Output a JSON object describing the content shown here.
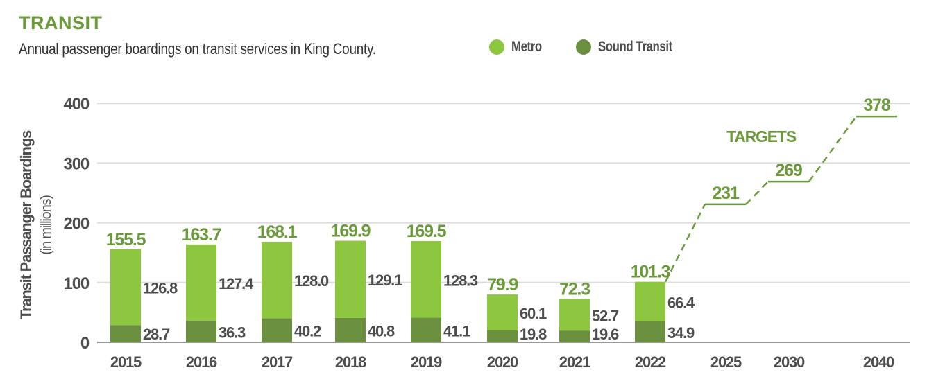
{
  "header": {
    "title": "TRANSIT",
    "subtitle": "Annual passenger boardings on transit services in King County."
  },
  "colors": {
    "metro": "#8dc63f",
    "sound_transit": "#6a8f3e",
    "accent": "#6a9a3a",
    "text": "#4d4d4f",
    "grid": "#dcdcdc"
  },
  "chart_data": {
    "type": "bar",
    "stacked": true,
    "ylabel": "Transit Passanger Boardings",
    "ylabel_sub": "(in millions)",
    "ylim": [
      0,
      400
    ],
    "yticks": [
      "0",
      "100",
      "200",
      "300",
      "400"
    ],
    "grid": true,
    "legend_placement": "top",
    "categories": [
      "2015",
      "2016",
      "2017",
      "2018",
      "2019",
      "2020",
      "2021",
      "2022"
    ],
    "totals": [
      "155.5",
      "163.7",
      "168.1",
      "169.9",
      "169.5",
      "79.9",
      "72.3",
      "101.3"
    ],
    "series": [
      {
        "name": "Sound Transit",
        "values": [
          28.7,
          36.3,
          40.2,
          40.8,
          41.1,
          19.8,
          19.6,
          34.9
        ],
        "labels": [
          "28.7",
          "36.3",
          "40.2",
          "40.8",
          "41.1",
          "19.8",
          "19.6",
          "34.9"
        ]
      },
      {
        "name": "Metro",
        "values": [
          126.8,
          127.4,
          128.0,
          129.1,
          128.3,
          60.1,
          52.7,
          66.4
        ],
        "labels": [
          "126.8",
          "127.4",
          "128.0",
          "129.1",
          "128.3",
          "60.1",
          "52.7",
          "66.4"
        ]
      }
    ],
    "targets": {
      "label": "TARGETS",
      "categories": [
        "2025",
        "2030",
        "2040"
      ],
      "values": [
        231,
        269,
        378
      ],
      "labels": [
        "231",
        "269",
        "378"
      ]
    }
  }
}
